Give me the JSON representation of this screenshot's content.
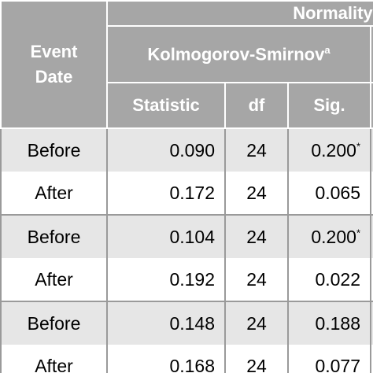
{
  "header": {
    "top_title": "Normality Tes",
    "event_date": [
      "Event",
      "Date"
    ],
    "test_name": "Kolmogorov-Smirnov",
    "test_name_sup": "a",
    "columns": [
      "Statistic",
      "df",
      "Sig."
    ]
  },
  "rows": [
    {
      "date": "Before",
      "statistic": "0.090",
      "df": "24",
      "sig": "0.200",
      "sig_mark": "*"
    },
    {
      "date": "After",
      "statistic": "0.172",
      "df": "24",
      "sig": "0.065",
      "sig_mark": ""
    },
    {
      "date": "Before",
      "statistic": "0.104",
      "df": "24",
      "sig": "0.200",
      "sig_mark": "*"
    },
    {
      "date": "After",
      "statistic": "0.192",
      "df": "24",
      "sig": "0.022",
      "sig_mark": ""
    },
    {
      "date": "Before",
      "statistic": "0.148",
      "df": "24",
      "sig": "0.188",
      "sig_mark": ""
    },
    {
      "date": "After",
      "statistic": "0.168",
      "df": "24",
      "sig": "0.077",
      "sig_mark": ""
    }
  ],
  "colors": {
    "header_bg": "#a6a6a6",
    "header_text": "#ffffff",
    "shaded_row": "#e6e6e6",
    "plain_row": "#ffffff"
  }
}
